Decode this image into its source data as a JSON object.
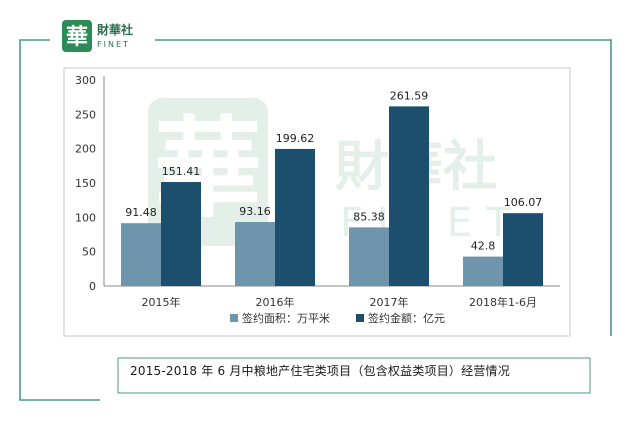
{
  "logo": {
    "glyph": "華",
    "name_cn": "財華社",
    "name_en": "FINET",
    "color": "#2e8b57"
  },
  "watermark": {
    "glyph": "華",
    "name_cn": "財華社",
    "name_en": "FINET"
  },
  "caption": "2015-2018 年 6 月中粮地产住宅类项目（包含权益类项目）经营情况",
  "colors": {
    "frame": "#4a9a86",
    "series1": "#6f95ad",
    "series2": "#1c4f6e"
  },
  "chart_data": {
    "type": "bar",
    "categories": [
      "2015年",
      "2016年",
      "2017年",
      "2018年1-6月"
    ],
    "series": [
      {
        "name": "签约面积：万平米",
        "values": [
          91.48,
          93.16,
          85.38,
          42.8
        ],
        "labels": [
          "91.48",
          "93.16",
          "85.38",
          "42.8"
        ],
        "color": "#6f95ad"
      },
      {
        "name": "签约金额：亿元",
        "values": [
          151.41,
          199.62,
          261.59,
          106.07
        ],
        "labels": [
          "151.41",
          "199.62",
          "261.59",
          "106.07"
        ],
        "color": "#1c4f6e"
      }
    ],
    "yticks": [
      "0",
      "50",
      "100",
      "150",
      "200",
      "250",
      "300"
    ],
    "ylim": [
      0,
      300
    ],
    "legend_position": "bottom",
    "grid": false
  }
}
